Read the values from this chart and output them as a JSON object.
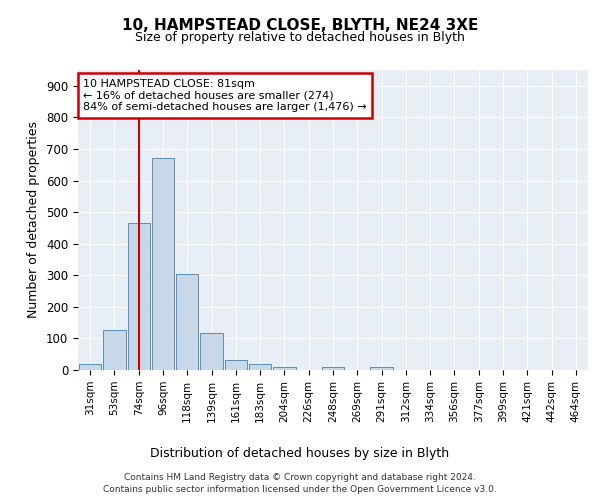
{
  "title1": "10, HAMPSTEAD CLOSE, BLYTH, NE24 3XE",
  "title2": "Size of property relative to detached houses in Blyth",
  "xlabel": "Distribution of detached houses by size in Blyth",
  "ylabel": "Number of detached properties",
  "bin_labels": [
    "31sqm",
    "53sqm",
    "74sqm",
    "96sqm",
    "118sqm",
    "139sqm",
    "161sqm",
    "183sqm",
    "204sqm",
    "226sqm",
    "248sqm",
    "269sqm",
    "291sqm",
    "312sqm",
    "334sqm",
    "356sqm",
    "377sqm",
    "399sqm",
    "421sqm",
    "442sqm",
    "464sqm"
  ],
  "bar_heights": [
    18,
    127,
    465,
    670,
    303,
    118,
    33,
    18,
    10,
    0,
    10,
    0,
    10,
    0,
    0,
    0,
    0,
    0,
    0,
    0,
    0
  ],
  "bar_color": "#c8d8e8",
  "bar_edge_color": "#5b8db8",
  "vline_color": "#cc0000",
  "annotation_text": "10 HAMPSTEAD CLOSE: 81sqm\n← 16% of detached houses are smaller (274)\n84% of semi-detached houses are larger (1,476) →",
  "annotation_box_color": "#ffffff",
  "annotation_box_edge_color": "#cc0000",
  "ylim": [
    0,
    950
  ],
  "yticks": [
    0,
    100,
    200,
    300,
    400,
    500,
    600,
    700,
    800,
    900
  ],
  "background_color": "#e8eef5",
  "footer_text": "Contains HM Land Registry data © Crown copyright and database right 2024.\nContains public sector information licensed under the Open Government Licence v3.0.",
  "figsize": [
    6.0,
    5.0
  ],
  "dpi": 100
}
